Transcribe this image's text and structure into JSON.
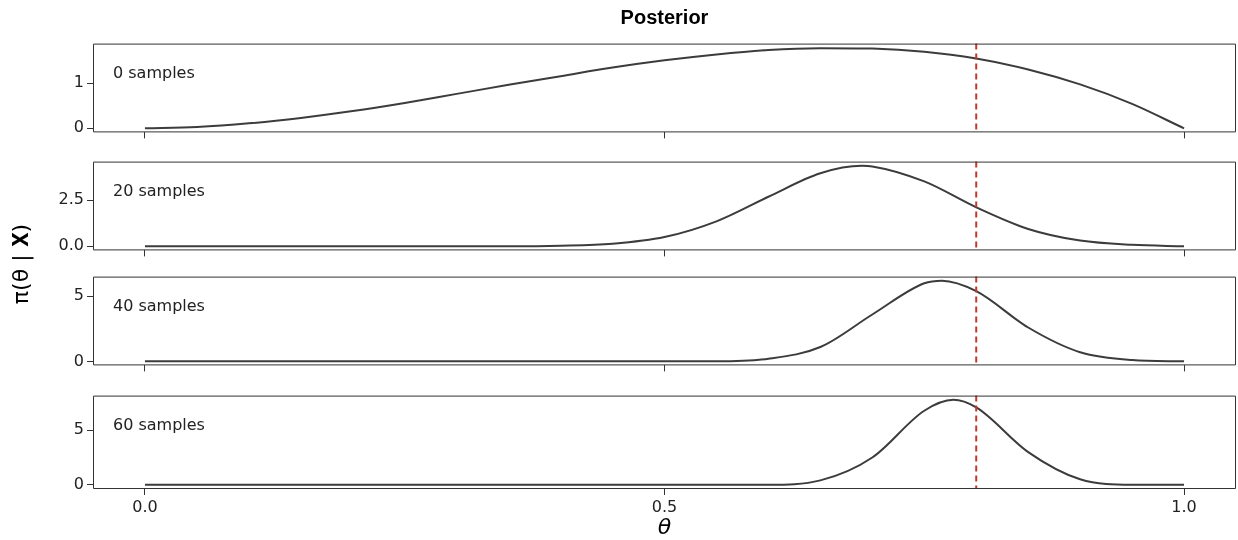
{
  "chart_data": [
    {
      "type": "line",
      "title": "Posterior",
      "ylabel": "π(θ | 𝐗)",
      "annotations": [
        "0 samples"
      ],
      "xlim": [
        -0.05,
        1.05
      ],
      "xticks": [
        {
          "value": 0,
          "label": null
        },
        {
          "value": 0.5,
          "label": null
        },
        {
          "value": 1,
          "label": null
        }
      ],
      "ylim": [
        -0.09,
        1.87
      ],
      "yticks": [
        0,
        1
      ],
      "tick_labels": "y",
      "grid": false,
      "legend": false,
      "marker": "none",
      "line_style": "solid",
      "ref_lines": [
        {
          "axis": "x",
          "value": 0.8,
          "color": "#c0392b",
          "line_style": "dashed"
        }
      ],
      "x": [
        0,
        0.05,
        0.1,
        0.15,
        0.2,
        0.25,
        0.3,
        0.35,
        0.4,
        0.45,
        0.5,
        0.55,
        0.6,
        0.65,
        0.7,
        0.75,
        0.8,
        0.85,
        0.9,
        0.95,
        1
      ],
      "series": [
        {
          "color": "#3c3c3c",
          "values": [
            0,
            0.03,
            0.11,
            0.23,
            0.38,
            0.56,
            0.76,
            0.96,
            1.15,
            1.34,
            1.5,
            1.63,
            1.73,
            1.77,
            1.76,
            1.69,
            1.54,
            1.3,
            0.97,
            0.54,
            0
          ]
        }
      ]
    },
    {
      "type": "line",
      "annotations": [
        "20 samples"
      ],
      "xlim": [
        -0.05,
        1.05
      ],
      "xticks": [
        {
          "value": 0,
          "label": null
        },
        {
          "value": 0.5,
          "label": null
        },
        {
          "value": 1,
          "label": null
        }
      ],
      "ylim": [
        -0.22,
        4.58
      ],
      "yticks": [
        {
          "value": 0,
          "label": "0.0"
        },
        2.5
      ],
      "tick_labels": "y",
      "grid": false,
      "legend": false,
      "marker": "none",
      "line_style": "solid",
      "ref_lines": [
        {
          "axis": "x",
          "value": 0.8,
          "color": "#c0392b",
          "line_style": "dashed"
        }
      ],
      "x": [
        0,
        0.35,
        0.4,
        0.45,
        0.5,
        0.55,
        0.6,
        0.65,
        0.69,
        0.7,
        0.75,
        0.8,
        0.85,
        0.9,
        0.95,
        1
      ],
      "series": [
        {
          "color": "#3c3c3c",
          "values": [
            0,
            0,
            0.03,
            0.14,
            0.5,
            1.35,
            2.68,
            3.95,
            4.35,
            4.32,
            3.51,
            2.11,
            0.94,
            0.31,
            0.08,
            0
          ]
        }
      ]
    },
    {
      "type": "line",
      "annotations": [
        "40 samples"
      ],
      "xlim": [
        -0.05,
        1.05
      ],
      "xticks": [
        {
          "value": 0,
          "label": null
        },
        {
          "value": 0.5,
          "label": null
        },
        {
          "value": 1,
          "label": null
        }
      ],
      "ylim": [
        -0.31,
        6.51
      ],
      "yticks": [
        0,
        5
      ],
      "tick_labels": "y",
      "grid": false,
      "legend": false,
      "marker": "none",
      "line_style": "solid",
      "ref_lines": [
        {
          "axis": "x",
          "value": 0.8,
          "color": "#c0392b",
          "line_style": "dashed"
        }
      ],
      "x": [
        0,
        0.5,
        0.55,
        0.6,
        0.65,
        0.7,
        0.75,
        0.767,
        0.8,
        0.85,
        0.9,
        0.95,
        1
      ],
      "series": [
        {
          "color": "#3c3c3c",
          "values": [
            0,
            0,
            0,
            0.2,
            1.1,
            3.6,
            6,
            6.2,
            5.4,
            2.6,
            0.7,
            0.1,
            0
          ]
        }
      ]
    },
    {
      "type": "line",
      "annotations": [
        "60 samples"
      ],
      "xlabel": "θ",
      "xlim": [
        -0.05,
        1.05
      ],
      "xticks": [
        {
          "value": 0,
          "label": "0.0"
        },
        {
          "value": 0.5,
          "label": "0.5"
        },
        {
          "value": 1,
          "label": "1.0"
        }
      ],
      "ylim": [
        -0.39,
        8.19
      ],
      "yticks": [
        0,
        5
      ],
      "grid": false,
      "legend": false,
      "marker": "none",
      "line_style": "solid",
      "ref_lines": [
        {
          "axis": "x",
          "value": 0.8,
          "color": "#c0392b",
          "line_style": "dashed"
        }
      ],
      "x": [
        0,
        0.55,
        0.6,
        0.65,
        0.7,
        0.75,
        0.778,
        0.8,
        0.85,
        0.9,
        0.95,
        1
      ],
      "series": [
        {
          "color": "#3c3c3c",
          "values": [
            0,
            0,
            0,
            0.4,
            2.5,
            6.8,
            7.8,
            7.1,
            3,
            0.5,
            0,
            0
          ]
        }
      ]
    }
  ]
}
